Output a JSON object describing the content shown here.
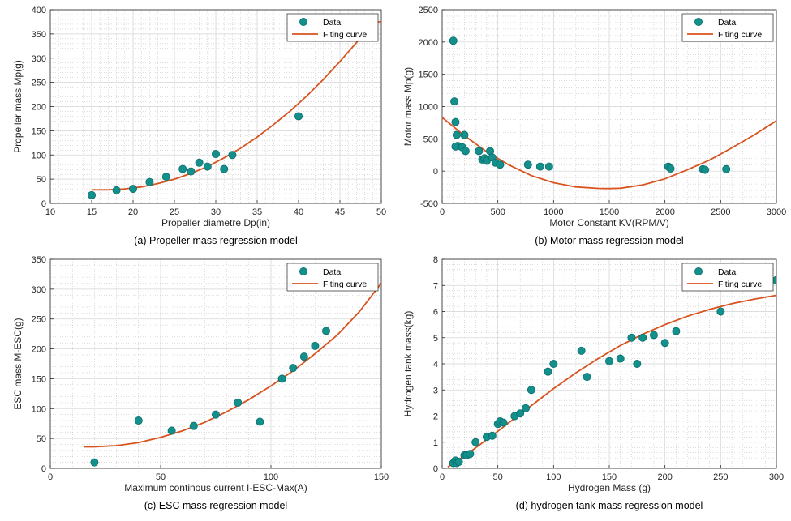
{
  "colors": {
    "data_marker": "#138f8c",
    "marker_edge": "#0b6e6b",
    "fit_curve": "#d9531e",
    "grid": "#b9b9b9"
  },
  "chart_data": [
    {
      "type": "scatter",
      "caption": "(a) Propeller mass regression model",
      "xlabel": "Propeller diametre Dp(in)",
      "ylabel": "Propeller mass Mp(g)",
      "xlim": [
        10,
        50
      ],
      "ylim": [
        0,
        400
      ],
      "xticks": [
        10,
        15,
        20,
        25,
        30,
        35,
        40,
        45,
        50
      ],
      "yticks": [
        0,
        50,
        100,
        150,
        200,
        250,
        300,
        350,
        400
      ],
      "grid": true,
      "legend_position": "top-right",
      "series": [
        {
          "name": "Data",
          "kind": "scatter",
          "x": [
            15,
            18,
            20,
            22,
            24,
            26,
            27,
            28,
            29,
            30,
            31,
            32,
            40
          ],
          "y": [
            17,
            27,
            30,
            44,
            55,
            71,
            66,
            84,
            76,
            102,
            71,
            100,
            180
          ]
        },
        {
          "name": "Fiting curve",
          "kind": "line",
          "x": [
            15,
            17,
            19,
            21,
            23,
            25,
            27,
            29,
            31,
            33,
            35,
            37,
            39,
            41,
            43,
            45,
            47,
            49,
            50
          ],
          "y": [
            28,
            28,
            30,
            34,
            41,
            50,
            62,
            76,
            94,
            114,
            137,
            163,
            191,
            222,
            256,
            293,
            332,
            375,
            375
          ]
        }
      ]
    },
    {
      "type": "scatter",
      "caption": "(b) Motor mass regression model",
      "xlabel": "Motor Constant KV(RPM/V)",
      "ylabel": "Motor mass Mp(g)",
      "xlim": [
        0,
        3000
      ],
      "ylim": [
        -500,
        2500
      ],
      "xticks": [
        0,
        500,
        1000,
        1500,
        2000,
        2500,
        3000
      ],
      "yticks": [
        -500,
        0,
        500,
        1000,
        1500,
        2000,
        2500
      ],
      "grid": true,
      "legend_position": "top-right",
      "series": [
        {
          "name": "Data",
          "kind": "scatter",
          "x": [
            100,
            110,
            120,
            130,
            140,
            120,
            180,
            200,
            210,
            330,
            360,
            380,
            400,
            430,
            450,
            480,
            520,
            770,
            880,
            960,
            2030,
            2050,
            2340,
            2360,
            2550
          ],
          "y": [
            2020,
            1080,
            760,
            560,
            390,
            380,
            370,
            560,
            310,
            310,
            180,
            200,
            160,
            310,
            210,
            130,
            100,
            100,
            70,
            70,
            70,
            40,
            30,
            20,
            30
          ]
        },
        {
          "name": "Fiting curve",
          "kind": "line",
          "x": [
            0,
            200,
            400,
            600,
            800,
            1000,
            1200,
            1400,
            1500,
            1600,
            1800,
            2000,
            2200,
            2400,
            2600,
            2800,
            3000
          ],
          "y": [
            830,
            550,
            300,
            95,
            -70,
            -180,
            -245,
            -268,
            -270,
            -265,
            -215,
            -120,
            20,
            170,
            360,
            560,
            780
          ]
        }
      ]
    },
    {
      "type": "scatter",
      "caption": "(c) ESC mass regression model",
      "xlabel": "Maximum continous current I-ESC-Max(A)",
      "ylabel": "ESC mass M-ESC(g)",
      "xlim": [
        0,
        150
      ],
      "ylim": [
        0,
        350
      ],
      "xticks": [
        0,
        50,
        100,
        150
      ],
      "yticks": [
        0,
        50,
        100,
        150,
        200,
        250,
        300,
        350
      ],
      "grid": true,
      "legend_position": "top-right",
      "series": [
        {
          "name": "Data",
          "kind": "scatter",
          "x": [
            20,
            40,
            55,
            65,
            75,
            85,
            95,
            105,
            110,
            115,
            120,
            125
          ],
          "y": [
            10,
            80,
            63,
            71,
            90,
            110,
            78,
            150,
            168,
            187,
            205,
            230
          ]
        },
        {
          "name": "Fiting curve",
          "kind": "line",
          "x": [
            15,
            20,
            25,
            30,
            40,
            50,
            60,
            70,
            80,
            90,
            100,
            110,
            120,
            130,
            140,
            150
          ],
          "y": [
            36,
            36,
            37,
            38,
            43,
            52,
            63,
            77,
            95,
            115,
            138,
            163,
            192,
            223,
            262,
            310
          ]
        }
      ]
    },
    {
      "type": "scatter",
      "caption": "(d) hydrogen tank mass regression model",
      "xlabel": "Hydrogen Mass (g)",
      "ylabel": "Hydrogen tank mass(kg)",
      "xlim": [
        0,
        300
      ],
      "ylim": [
        0,
        8
      ],
      "xticks": [
        0,
        50,
        100,
        150,
        200,
        250,
        300
      ],
      "yticks": [
        0,
        1,
        2,
        3,
        4,
        5,
        6,
        7,
        8
      ],
      "grid": true,
      "legend_position": "top-right",
      "series": [
        {
          "name": "Data",
          "kind": "scatter",
          "x": [
            10,
            12,
            13,
            15,
            20,
            22,
            25,
            30,
            40,
            45,
            50,
            52,
            55,
            65,
            70,
            75,
            80,
            95,
            100,
            125,
            130,
            150,
            160,
            170,
            175,
            180,
            190,
            200,
            210,
            250,
            300
          ],
          "y": [
            0.2,
            0.3,
            0.2,
            0.25,
            0.5,
            0.5,
            0.55,
            1.0,
            1.2,
            1.25,
            1.7,
            1.8,
            1.75,
            2.0,
            2.1,
            2.3,
            3.0,
            3.7,
            4.0,
            4.5,
            3.5,
            4.1,
            4.2,
            5.0,
            4.0,
            5.0,
            5.1,
            4.8,
            5.25,
            6.0,
            7.2
          ]
        },
        {
          "name": "Fiting curve",
          "kind": "line",
          "x": [
            5,
            10,
            20,
            30,
            40,
            50,
            60,
            80,
            100,
            120,
            140,
            160,
            180,
            200,
            220,
            240,
            260,
            280,
            300
          ],
          "y": [
            0.05,
            0.2,
            0.48,
            0.78,
            1.1,
            1.42,
            1.75,
            2.4,
            3.05,
            3.65,
            4.2,
            4.7,
            5.13,
            5.5,
            5.82,
            6.08,
            6.3,
            6.47,
            6.62
          ]
        }
      ]
    }
  ]
}
